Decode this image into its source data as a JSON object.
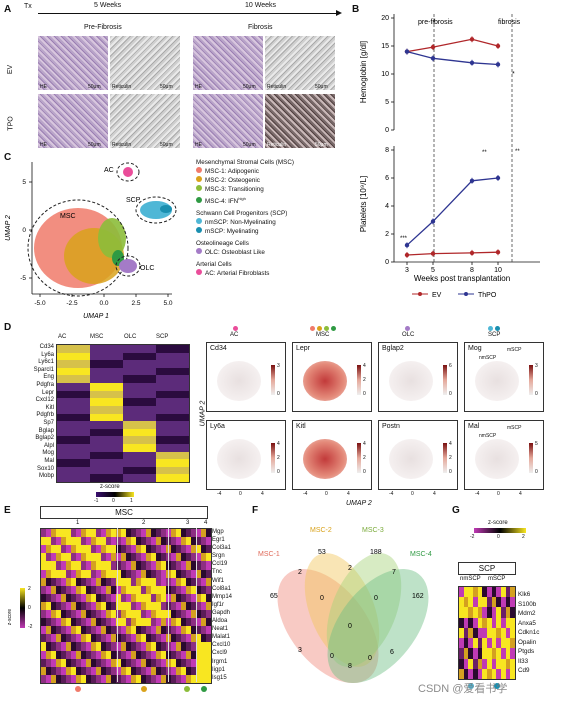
{
  "panelA": {
    "label": "A",
    "timeline": {
      "tx": "Tx",
      "t1": "5 Weeks",
      "t2": "10 Weeks"
    },
    "stage1": "Pre-Fibrosis",
    "stage2": "Fibrosis",
    "row1": "EV",
    "row2": "TPO",
    "stain_he": "HE",
    "stain_ret": "Reticulin",
    "scale": "50μm"
  },
  "panelB": {
    "label": "B",
    "markers": [
      "pre-fibrosis",
      "fibrosis"
    ],
    "xlabel": "Weeks post transplantation",
    "legend": [
      "EV",
      "ThPO"
    ],
    "top": {
      "ylabel": "Hemoglobin [g/dl]",
      "ticks": [
        "20",
        "15",
        "10",
        "5",
        "0"
      ]
    },
    "bottom": {
      "ylabel": "Platelets [10⁹/L]",
      "ticks": [
        "8",
        "6",
        "4",
        "2",
        "0"
      ]
    },
    "xticks": [
      "3",
      "5",
      "8",
      "10"
    ],
    "stars_top": "*",
    "stars_bottom": [
      "***",
      "**",
      "**"
    ]
  },
  "chart_data": [
    {
      "type": "line",
      "ylabel": "Hemoglobin [g/dl]",
      "xlabel": "Weeks post transplantation",
      "x": [
        3,
        5,
        8,
        10
      ],
      "ylim": [
        0,
        20
      ],
      "series": [
        {
          "name": "EV",
          "values": [
            14.0,
            14.8,
            16.2,
            15.0
          ],
          "color": "#b0272a"
        },
        {
          "name": "ThPO",
          "values": [
            14.0,
            12.8,
            12.0,
            11.7
          ],
          "color": "#2e3591"
        }
      ]
    },
    {
      "type": "line",
      "ylabel": "Platelets [10⁹/L]",
      "xlabel": "Weeks post transplantation",
      "x": [
        3,
        5,
        8,
        10
      ],
      "ylim": [
        0,
        8
      ],
      "series": [
        {
          "name": "EV",
          "values": [
            0.5,
            0.6,
            0.65,
            0.7
          ],
          "color": "#b0272a"
        },
        {
          "name": "ThPO",
          "values": [
            1.2,
            2.9,
            5.8,
            6.0
          ],
          "color": "#2e3591"
        }
      ]
    }
  ],
  "panelC": {
    "label": "C",
    "xlabel": "UMAP 1",
    "ylabel": "UMAP 2",
    "xticks": [
      "-5.0",
      "-2.5",
      "0.0",
      "2.5",
      "5.0"
    ],
    "yticks": [
      "5",
      "0",
      "-5"
    ],
    "clusters": {
      "ac": "AC",
      "scp": "SCP",
      "msc": "MSC",
      "olc": "OLC"
    },
    "legend": {
      "msc_head": "Mesenchymal Stromal Cells (MSC)",
      "msc1": "MSC-1: Adipogenic",
      "msc2": "MSC-2: Osteogenic",
      "msc3": "MSC-3: Transitioning",
      "msc4": "MSC-4: IFN",
      "msc4_sup": "high",
      "scp_head": "Schwann Cell Progenitors (SCP)",
      "nmscp": "nmSCP: Non-Myelinating",
      "mscp": "mSCP:   Myelinating",
      "ol_head": "Osteolineage Cells",
      "olc": "OLC: Osteoblast Like",
      "ar_head": "Arterial Cells",
      "ac": "AC: Arterial Fibroblasts"
    },
    "colors": {
      "msc1": "#f07a6a",
      "msc2": "#d9a21b",
      "msc3": "#8cbd3a",
      "msc4": "#2f9a43",
      "nmscp": "#4fb7d6",
      "mscp": "#1a8fb0",
      "olc": "#a47bc7",
      "ac": "#ea4d9a"
    }
  },
  "panelD": {
    "label": "D",
    "cols": [
      "AC",
      "MSC",
      "OLC",
      "SCP"
    ],
    "genes": [
      "Cd34",
      "Ly6a",
      "Ly6c1",
      "Sparcl1",
      "Eng",
      "Pdgfra",
      "Lepr",
      "Cxcl12",
      "Kitl",
      "Pdgfrb",
      "Sp7",
      "Bglap",
      "Bglap2",
      "Alpl",
      "Mog",
      "Mal",
      "Sox10",
      "Mobp"
    ],
    "zscore": "z-score",
    "zticks": [
      "-1",
      "0",
      "1"
    ],
    "umap_cols": [
      "AC",
      "MSC",
      "OLC",
      "SCP"
    ],
    "umap_row1": [
      "Cd34",
      "Lepr",
      "Bglap2",
      "Mog"
    ],
    "umap_row2": [
      "Ly6a",
      "Kitl",
      "Postn",
      "Mal"
    ],
    "umap_xlabel": "UMAP 2",
    "umap_ylabel": "UMAP 2",
    "mini_ticks": [
      "-4",
      "0",
      "4"
    ],
    "scp_tags": [
      "nmSCP",
      "mSCP"
    ],
    "cb": [
      [
        "3",
        "0"
      ],
      [
        "4",
        "2",
        "0"
      ],
      [
        "6",
        "0"
      ],
      [
        "3",
        "0"
      ],
      [
        "4",
        "2",
        "0"
      ],
      [
        "4",
        "2",
        "0"
      ],
      [
        "4",
        "2",
        "0"
      ],
      [
        "5",
        "0"
      ]
    ]
  },
  "panelE": {
    "label": "E",
    "title": "MSC",
    "clusters": [
      "1",
      "2",
      "3",
      "4"
    ],
    "zscore": "z-score",
    "zticks": [
      "2",
      "0",
      "-2"
    ],
    "genes": [
      "Mgp",
      "Egr1",
      "Col3a1",
      "Srgn",
      "Ccl19",
      "Tnc",
      "Wif1",
      "Col8a1",
      "Mmp14",
      "Igf1r",
      "Gapdh",
      "Aldoa",
      "Neat1",
      "Malat1",
      "Cxcl10",
      "Cxcl9",
      "Irgm1",
      "Iigp1",
      "Isg15"
    ]
  },
  "panelF": {
    "label": "F",
    "sets": [
      "MSC-1",
      "MSC-2",
      "MSC-3",
      "MSC-4"
    ],
    "counts": [
      "65",
      "53",
      "188",
      "162",
      "2",
      "2",
      "7",
      "3",
      "0",
      "0",
      "0",
      "0",
      "6",
      "0",
      "8"
    ]
  },
  "panelG": {
    "label": "G",
    "zscore": "z-score",
    "zticks": [
      "-2",
      "0",
      "2"
    ],
    "title": "SCP",
    "cols": [
      "nmSCP",
      "mSCP"
    ],
    "genes": [
      "Klk6",
      "S100b",
      "Mdm2",
      "Anxa5",
      "Cdkn1c",
      "Opalin",
      "Ptgds",
      "Il33",
      "Cd9"
    ],
    "watermark": "CSDN @爱看书学"
  }
}
